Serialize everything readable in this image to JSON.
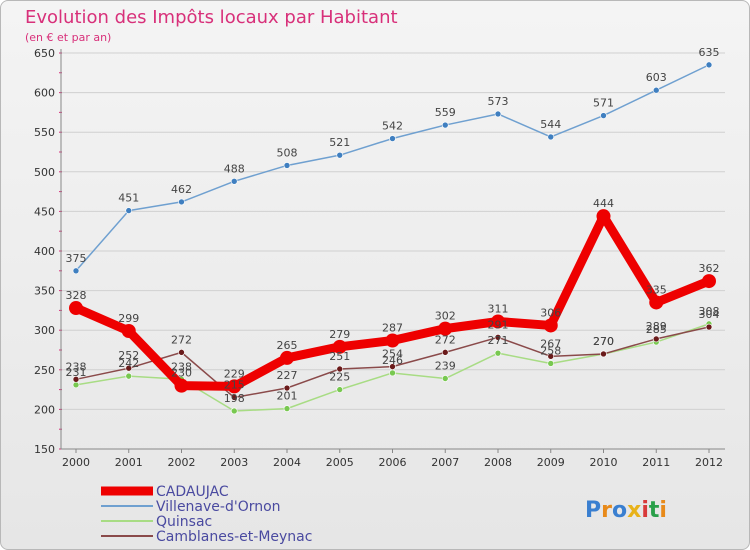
{
  "chart_data": {
    "type": "line",
    "title": "Evolution des Impôts locaux par Habitant",
    "subtitle": "(en € et par an)",
    "x": [
      "2000",
      "2001",
      "2002",
      "2003",
      "2004",
      "2005",
      "2006",
      "2007",
      "2008",
      "2009",
      "2010",
      "2011",
      "2012"
    ],
    "yticks": [
      "150",
      "200",
      "250",
      "300",
      "350",
      "400",
      "450",
      "500",
      "550",
      "600",
      "650"
    ],
    "ylim": [
      150,
      650
    ],
    "grid": "horizontal",
    "legend_position": "bottom-left",
    "series": [
      {
        "name": "Villenave-d'Ornon",
        "color": "#6fa0d0",
        "marker": "#3f7fc0",
        "values": [
          375,
          451,
          462,
          488,
          508,
          521,
          542,
          559,
          573,
          544,
          571,
          603,
          635
        ]
      },
      {
        "name": "Quinsac",
        "color": "#a8dc84",
        "marker": "#78c850",
        "values": [
          231,
          242,
          238,
          198,
          201,
          225,
          246,
          239,
          271,
          258,
          270,
          285,
          308
        ]
      },
      {
        "name": "Camblanes-et-Meynac",
        "color": "#8a4a4a",
        "marker": "#6a1a1a",
        "values": [
          238,
          252,
          272,
          215,
          227,
          251,
          254,
          272,
          291,
          267,
          270,
          289,
          304
        ]
      },
      {
        "name": "CADAUJAC",
        "color": "#ee0000",
        "marker": "#ee0000",
        "values": [
          328,
          299,
          230,
          229,
          265,
          279,
          287,
          302,
          311,
          306,
          444,
          335,
          362
        ]
      }
    ],
    "legend_order": [
      "CADAUJAC",
      "Villenave-d'Ornon",
      "Quinsac",
      "Camblanes-et-Meynac"
    ]
  },
  "brand": {
    "logo": "Proxiti"
  }
}
